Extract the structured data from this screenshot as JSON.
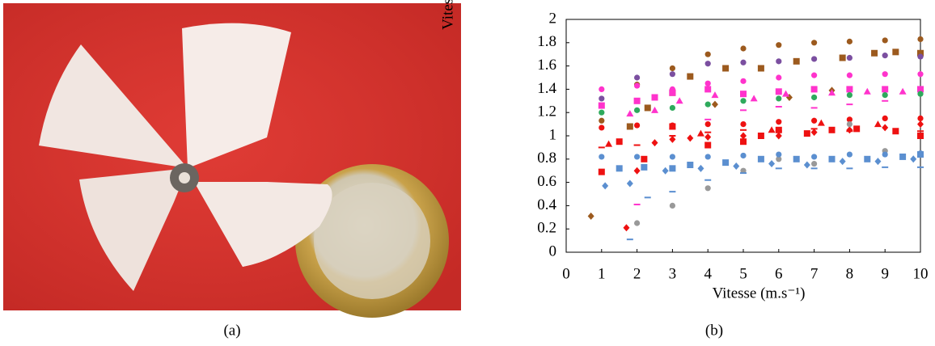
{
  "captions": [
    "(a)",
    "(b)"
  ],
  "chart_data": {
    "type": "scatter",
    "x_label": "Vitesse (m.s⁻¹)",
    "y_label": "Vitesse spécifique",
    "xlim": [
      0,
      10
    ],
    "xticks": [
      0,
      1,
      2,
      3,
      4,
      5,
      6,
      7,
      8,
      9,
      10
    ],
    "ylim": [
      0,
      2
    ],
    "yticks": [
      0,
      0.2,
      0.4,
      0.6,
      0.8,
      1,
      1.2,
      1.4,
      1.6,
      1.8,
      2
    ],
    "series": [
      {
        "color": "#9c5a1e",
        "marker": "circle",
        "x": [
          1,
          2,
          3,
          4,
          5,
          6,
          7,
          8,
          9,
          10
        ],
        "values": [
          1.13,
          1.44,
          1.58,
          1.7,
          1.75,
          1.78,
          1.8,
          1.81,
          1.82,
          1.83
        ]
      },
      {
        "color": "#9c5a1e",
        "marker": "square",
        "x": [
          1.8,
          2.3,
          3,
          3.5,
          4.5,
          5.5,
          6.5,
          7.8,
          8.7,
          9.3,
          10
        ],
        "values": [
          1.08,
          1.24,
          1.37,
          1.51,
          1.58,
          1.58,
          1.64,
          1.67,
          1.71,
          1.72,
          1.71
        ]
      },
      {
        "color": "#9c5a1e",
        "marker": "diamond",
        "x": [
          0.7,
          4.2,
          6.3,
          7.5
        ],
        "values": [
          0.31,
          1.27,
          1.33,
          1.39
        ]
      },
      {
        "color": "#7b4fa0",
        "marker": "circle",
        "x": [
          1,
          2,
          3,
          4,
          5,
          6,
          7,
          8,
          9,
          10
        ],
        "values": [
          1.32,
          1.5,
          1.53,
          1.62,
          1.63,
          1.64,
          1.66,
          1.67,
          1.69,
          1.68
        ]
      },
      {
        "color": "#ff33cc",
        "marker": "circle",
        "x": [
          1,
          2,
          3,
          4,
          5,
          6,
          7,
          8,
          9,
          10
        ],
        "values": [
          1.4,
          1.43,
          1.4,
          1.45,
          1.47,
          1.5,
          1.52,
          1.52,
          1.53,
          1.53
        ]
      },
      {
        "color": "#ff33cc",
        "marker": "square",
        "x": [
          1,
          2,
          2.5,
          3,
          4,
          5,
          6,
          7,
          8,
          9,
          10
        ],
        "values": [
          1.26,
          1.3,
          1.33,
          1.37,
          1.4,
          1.36,
          1.38,
          1.4,
          1.4,
          1.4,
          1.4
        ]
      },
      {
        "color": "#ff33cc",
        "marker": "triangle",
        "x": [
          1.8,
          2.5,
          3.2,
          4.2,
          5.3,
          6.2,
          7.5,
          8.5,
          9.5
        ],
        "values": [
          1.19,
          1.22,
          1.3,
          1.35,
          1.32,
          1.36,
          1.37,
          1.38,
          1.38
        ]
      },
      {
        "color": "#ff33cc",
        "marker": "dash",
        "x": [
          2,
          3,
          4,
          5,
          6,
          7,
          8,
          9
        ],
        "values": [
          0.41,
          1.06,
          1.14,
          1.22,
          1.25,
          1.24,
          1.27,
          1.3
        ]
      },
      {
        "color": "#2eaa5c",
        "marker": "circle",
        "x": [
          1,
          2,
          3,
          4,
          5,
          6,
          7,
          8,
          9,
          10
        ],
        "values": [
          1.2,
          1.22,
          1.24,
          1.27,
          1.3,
          1.32,
          1.33,
          1.35,
          1.35,
          1.36
        ]
      },
      {
        "color": "#ee1111",
        "marker": "circle",
        "x": [
          1,
          2,
          3,
          4,
          5,
          6,
          7,
          8,
          9,
          10
        ],
        "values": [
          1.07,
          1.09,
          1.09,
          1.1,
          1.1,
          1.12,
          1.13,
          1.14,
          1.15,
          1.15
        ]
      },
      {
        "color": "#ee1111",
        "marker": "square",
        "x": [
          1,
          1.5,
          2.2,
          3,
          4,
          5,
          5.5,
          6,
          6.8,
          7.5,
          8.2,
          9.3,
          10
        ],
        "values": [
          0.69,
          0.95,
          0.8,
          1.08,
          0.92,
          0.95,
          1,
          1.05,
          1.02,
          1.05,
          1.06,
          1.04,
          1
        ]
      },
      {
        "color": "#ee1111",
        "marker": "diamond",
        "x": [
          1.7,
          2,
          2.5,
          3,
          3.5,
          4,
          5,
          6,
          7,
          8,
          9,
          10
        ],
        "values": [
          0.21,
          0.7,
          0.94,
          0.97,
          0.98,
          0.99,
          1,
          1,
          1.03,
          1.05,
          1.07,
          1.1
        ]
      },
      {
        "color": "#ee1111",
        "marker": "triangle",
        "x": [
          1.2,
          3.8,
          5.8,
          7.2,
          8.8
        ],
        "values": [
          0.93,
          1.02,
          1.05,
          1.11,
          1.1
        ]
      },
      {
        "color": "#ee1111",
        "marker": "dash",
        "x": [
          1,
          2,
          3,
          4,
          5,
          6,
          7,
          8,
          10
        ],
        "values": [
          0.9,
          0.92,
          1,
          1.03,
          1.05,
          1.04,
          1.06,
          1.04,
          1.04
        ]
      },
      {
        "color": "#999999",
        "marker": "circle",
        "x": [
          2,
          3,
          4,
          5,
          6,
          7,
          8,
          9
        ],
        "values": [
          0.25,
          0.4,
          0.55,
          0.7,
          0.8,
          0.76,
          1.1,
          0.87
        ]
      },
      {
        "color": "#5b8fd0",
        "marker": "circle",
        "x": [
          1,
          2,
          3,
          4,
          5,
          6,
          7,
          8,
          9,
          10
        ],
        "values": [
          0.82,
          0.82,
          0.82,
          0.82,
          0.83,
          0.84,
          0.82,
          0.84,
          0.84,
          0.85
        ]
      },
      {
        "color": "#5b8fd0",
        "marker": "square",
        "x": [
          1.5,
          2.2,
          3,
          3.5,
          4.5,
          5.5,
          6.5,
          7.5,
          8.5,
          9.5,
          10
        ],
        "values": [
          0.72,
          0.73,
          0.72,
          0.75,
          0.77,
          0.8,
          0.8,
          0.8,
          0.8,
          0.82,
          0.84
        ]
      },
      {
        "color": "#5b8fd0",
        "marker": "diamond",
        "x": [
          1.1,
          1.8,
          2.8,
          3.8,
          4.8,
          5.8,
          6.8,
          7.8,
          8.8,
          9.8
        ],
        "values": [
          0.57,
          0.59,
          0.7,
          0.72,
          0.74,
          0.76,
          0.75,
          0.78,
          0.78,
          0.8
        ]
      },
      {
        "color": "#5b8fd0",
        "marker": "dash",
        "x": [
          1.8,
          2.3,
          3,
          4,
          5,
          6,
          7,
          8,
          9,
          10
        ],
        "values": [
          0.11,
          0.47,
          0.52,
          0.62,
          0.68,
          0.72,
          0.72,
          0.72,
          0.73,
          0.73
        ]
      }
    ]
  }
}
